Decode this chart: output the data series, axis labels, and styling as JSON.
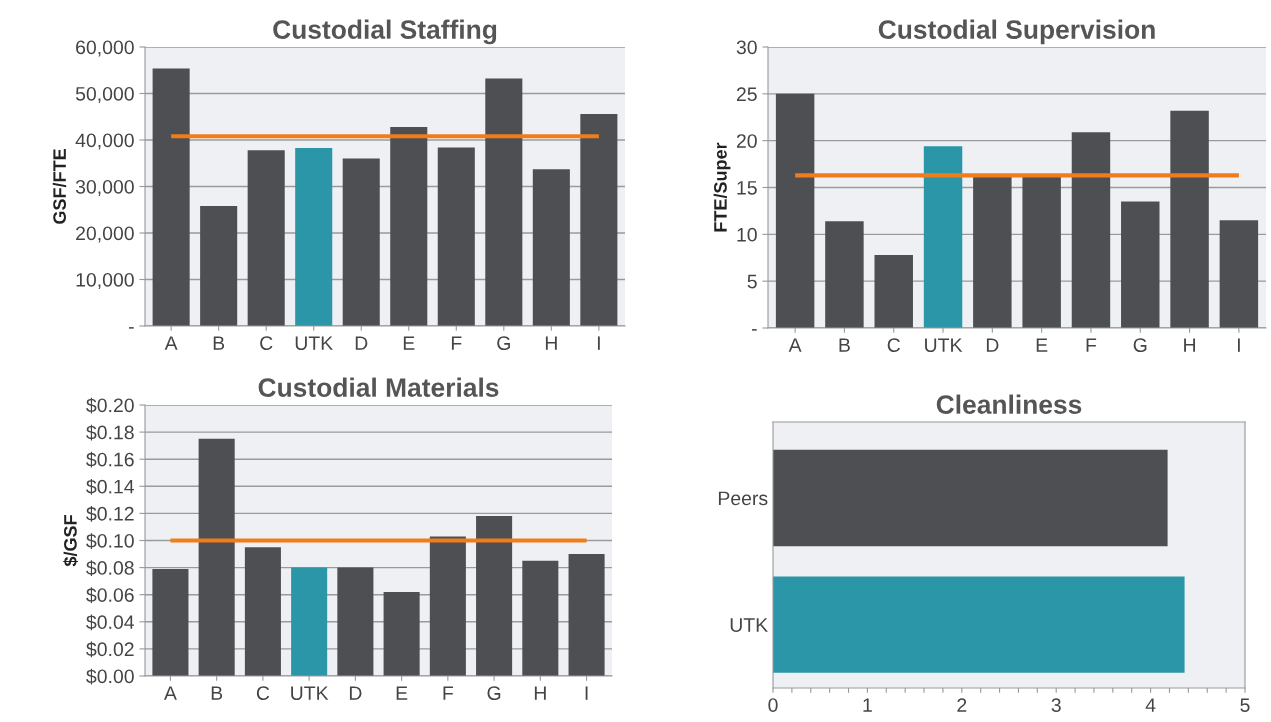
{
  "chart_data": [
    {
      "type": "bar",
      "title": "Custodial Staffing",
      "ylabel": "GSF/FTE",
      "categories": [
        "A",
        "B",
        "C",
        "UTK",
        "D",
        "E",
        "F",
        "G",
        "H",
        "I"
      ],
      "values": [
        55400,
        25800,
        37800,
        38300,
        36000,
        42800,
        38400,
        53200,
        33700,
        45600
      ],
      "colors": [
        "#4d4f53",
        "#4d4f53",
        "#4d4f53",
        "#2a96a8",
        "#4d4f53",
        "#4d4f53",
        "#4d4f53",
        "#4d4f53",
        "#4d4f53",
        "#4d4f53"
      ],
      "ylim": [
        0,
        60000
      ],
      "yticks": [
        {
          "value": 0,
          "label": "-"
        },
        {
          "value": 10000,
          "label": "10,000"
        },
        {
          "value": 20000,
          "label": "20,000"
        },
        {
          "value": 30000,
          "label": "30,000"
        },
        {
          "value": 40000,
          "label": "40,000"
        },
        {
          "value": 50000,
          "label": "50,000"
        },
        {
          "value": 60000,
          "label": "60,000"
        }
      ],
      "ref_lines": [
        {
          "axis": "y",
          "value": 40800,
          "color": "#f07d1a"
        }
      ],
      "grid": "y"
    },
    {
      "type": "bar",
      "title": "Custodial Supervision",
      "ylabel": "FTE/Super",
      "categories": [
        "A",
        "B",
        "C",
        "UTK",
        "D",
        "E",
        "F",
        "G",
        "H",
        "I"
      ],
      "values": [
        25.0,
        11.4,
        7.8,
        19.4,
        16.2,
        16.2,
        20.9,
        13.5,
        23.2,
        11.5
      ],
      "colors": [
        "#4d4f53",
        "#4d4f53",
        "#4d4f53",
        "#2a96a8",
        "#4d4f53",
        "#4d4f53",
        "#4d4f53",
        "#4d4f53",
        "#4d4f53",
        "#4d4f53"
      ],
      "ylim": [
        0,
        30
      ],
      "yticks": [
        {
          "value": 0,
          "label": "-"
        },
        5,
        10,
        15,
        20,
        25,
        30
      ],
      "ref_lines": [
        {
          "axis": "y",
          "value": 16.3,
          "color": "#f07d1a"
        }
      ],
      "grid": "y"
    },
    {
      "type": "bar",
      "title": "Custodial Materials",
      "ylabel": "$/GSF",
      "categories": [
        "A",
        "B",
        "C",
        "UTK",
        "D",
        "E",
        "F",
        "G",
        "H",
        "I"
      ],
      "values": [
        0.079,
        0.175,
        0.095,
        0.08,
        0.08,
        0.062,
        0.103,
        0.118,
        0.085,
        0.09
      ],
      "colors": [
        "#4d4f53",
        "#4d4f53",
        "#4d4f53",
        "#2a96a8",
        "#4d4f53",
        "#4d4f53",
        "#4d4f53",
        "#4d4f53",
        "#4d4f53",
        "#4d4f53"
      ],
      "ylim": [
        0,
        0.2
      ],
      "yticks": [
        {
          "value": 0,
          "label": "$0.00"
        },
        {
          "value": 0.02,
          "label": "$0.02"
        },
        {
          "value": 0.04,
          "label": "$0.04"
        },
        {
          "value": 0.06,
          "label": "$0.06"
        },
        {
          "value": 0.08,
          "label": "$0.08"
        },
        {
          "value": 0.1,
          "label": "$0.10"
        },
        {
          "value": 0.12,
          "label": "$0.12"
        },
        {
          "value": 0.14,
          "label": "$0.14"
        },
        {
          "value": 0.16,
          "label": "$0.16"
        },
        {
          "value": 0.18,
          "label": "$0.18"
        },
        {
          "value": 0.2,
          "label": "$0.20"
        }
      ],
      "ref_lines": [
        {
          "axis": "y",
          "value": 0.1,
          "color": "#f07d1a"
        }
      ],
      "grid": "y"
    },
    {
      "type": "bar",
      "orientation": "horizontal",
      "title": "Cleanliness",
      "categories": [
        "Peers",
        "UTK"
      ],
      "values": [
        4.18,
        4.36
      ],
      "colors": [
        "#4d4f53",
        "#2a96a8"
      ],
      "xlim": [
        0,
        5
      ],
      "xticks": [
        0,
        {
          "value": 0.2,
          "label": null
        },
        {
          "value": 0.4,
          "label": null
        },
        {
          "value": 0.6,
          "label": null
        },
        {
          "value": 0.8,
          "label": null
        },
        1,
        {
          "value": 1.2,
          "label": null
        },
        {
          "value": 1.4,
          "label": null
        },
        {
          "value": 1.6,
          "label": null
        },
        {
          "value": 1.8,
          "label": null
        },
        2,
        {
          "value": 2.2,
          "label": null
        },
        {
          "value": 2.4,
          "label": null
        },
        {
          "value": 2.6,
          "label": null
        },
        {
          "value": 2.8,
          "label": null
        },
        3,
        {
          "value": 3.2,
          "label": null
        },
        {
          "value": 3.4,
          "label": null
        },
        {
          "value": 3.6,
          "label": null
        },
        {
          "value": 3.8,
          "label": null
        },
        4,
        {
          "value": 4.2,
          "label": null
        },
        {
          "value": 4.4,
          "label": null
        },
        {
          "value": 4.6,
          "label": null
        },
        {
          "value": 4.8,
          "label": null
        },
        5
      ],
      "grid": false
    }
  ]
}
